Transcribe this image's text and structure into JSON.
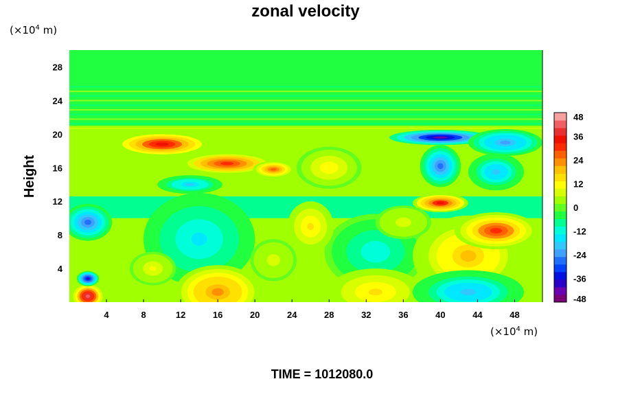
{
  "chart_data": {
    "type": "heatmap",
    "title": "zonal velocity",
    "ylabel": "Height",
    "xunit": {
      "prefix": "(×10",
      "exp": "4",
      "suffix": " m)"
    },
    "yunit": {
      "prefix": "(×10",
      "exp": "4",
      "suffix": " m)"
    },
    "xlim": [
      0,
      51
    ],
    "ylim": [
      0,
      30
    ],
    "xticks": [
      4,
      8,
      12,
      16,
      20,
      24,
      28,
      32,
      36,
      40,
      44,
      48
    ],
    "yticks": [
      4,
      8,
      12,
      16,
      20,
      24,
      28
    ],
    "colorbar": {
      "min": -48,
      "max": 48,
      "ticks": [
        48,
        36,
        24,
        12,
        0,
        -12,
        -24,
        -36,
        -48
      ],
      "colors": [
        "#7a007a",
        "#6a00b0",
        "#2a00c8",
        "#0010e0",
        "#0040ff",
        "#2070ff",
        "#40a0ff",
        "#30c8ff",
        "#00e8ff",
        "#00ffd8",
        "#00ff90",
        "#20ff40",
        "#60ff20",
        "#a0ff00",
        "#d8ff00",
        "#ffff00",
        "#ffe000",
        "#ffc000",
        "#ff9000",
        "#ff6000",
        "#ff2a00",
        "#f01000",
        "#e83030",
        "#f06060",
        "#f8a0a0"
      ]
    },
    "features": [
      {
        "x": 15,
        "y": 6.5,
        "rx": 4.2,
        "ry": 4.2,
        "v": -34
      },
      {
        "x": 14,
        "y": 7.5,
        "rx": 6,
        "ry": 5.5,
        "v": -14
      },
      {
        "x": 33,
        "y": 5.5,
        "rx": 3.2,
        "ry": 2.6,
        "v": -30
      },
      {
        "x": 33,
        "y": 6,
        "rx": 5.5,
        "ry": 4.5,
        "v": -12
      },
      {
        "x": 42,
        "y": 5,
        "rx": 3.2,
        "ry": 3,
        "v": 34
      },
      {
        "x": 43,
        "y": 5.5,
        "rx": 6,
        "ry": 4.8,
        "v": 18
      },
      {
        "x": 16,
        "y": 0.6,
        "rx": 2.8,
        "ry": 1.8,
        "v": 52
      },
      {
        "x": 16,
        "y": 1.2,
        "rx": 4.6,
        "ry": 3.2,
        "v": 24
      },
      {
        "x": 33,
        "y": 0.6,
        "rx": 3.2,
        "ry": 1.6,
        "v": 36
      },
      {
        "x": 33,
        "y": 1.2,
        "rx": 5.2,
        "ry": 2.8,
        "v": 14
      },
      {
        "x": 43,
        "y": 0.4,
        "rx": 4,
        "ry": 1.4,
        "v": -50
      },
      {
        "x": 43,
        "y": 1.2,
        "rx": 6,
        "ry": 2.6,
        "v": -20
      },
      {
        "x": 2,
        "y": 0.7,
        "rx": 1.6,
        "ry": 1.4,
        "v": 44
      },
      {
        "x": 2,
        "y": 2.8,
        "rx": 1.2,
        "ry": 0.9,
        "v": -38
      },
      {
        "x": 2,
        "y": 9.5,
        "rx": 2.6,
        "ry": 2.2,
        "v": -28
      },
      {
        "x": 10,
        "y": 18.8,
        "rx": 5,
        "ry": 1.4,
        "v": 36
      },
      {
        "x": 17,
        "y": 16.5,
        "rx": 5,
        "ry": 1.3,
        "v": 32
      },
      {
        "x": 22,
        "y": 15.8,
        "rx": 2.2,
        "ry": 1,
        "v": 26
      },
      {
        "x": 40,
        "y": 19.6,
        "rx": 5.5,
        "ry": 0.9,
        "v": -42
      },
      {
        "x": 47,
        "y": 19,
        "rx": 4,
        "ry": 1.6,
        "v": -24
      },
      {
        "x": 40,
        "y": 16.2,
        "rx": 2.2,
        "ry": 2.5,
        "v": -26
      },
      {
        "x": 46,
        "y": 15.5,
        "rx": 3,
        "ry": 2.2,
        "v": -20
      },
      {
        "x": 40,
        "y": 11.8,
        "rx": 3,
        "ry": 1.1,
        "v": 34
      },
      {
        "x": 46,
        "y": 8.5,
        "rx": 4.5,
        "ry": 2.2,
        "v": 30
      },
      {
        "x": 36,
        "y": 9.5,
        "rx": 3,
        "ry": 2,
        "v": 8
      },
      {
        "x": 13,
        "y": 14,
        "rx": 3.5,
        "ry": 1.1,
        "v": -18
      },
      {
        "x": 28,
        "y": 16,
        "rx": 3.5,
        "ry": 2.5,
        "v": 12
      },
      {
        "x": 26,
        "y": 9,
        "rx": 2.5,
        "ry": 3,
        "v": 14
      },
      {
        "x": 22,
        "y": 5,
        "rx": 2.5,
        "ry": 2.5,
        "v": 8
      },
      {
        "x": 9,
        "y": 4,
        "rx": 2.5,
        "ry": 2,
        "v": 10
      }
    ],
    "layers": {
      "stableAbove": 21,
      "stripeBase": 20.6
    },
    "time_label": "TIME = 1012080.0"
  }
}
